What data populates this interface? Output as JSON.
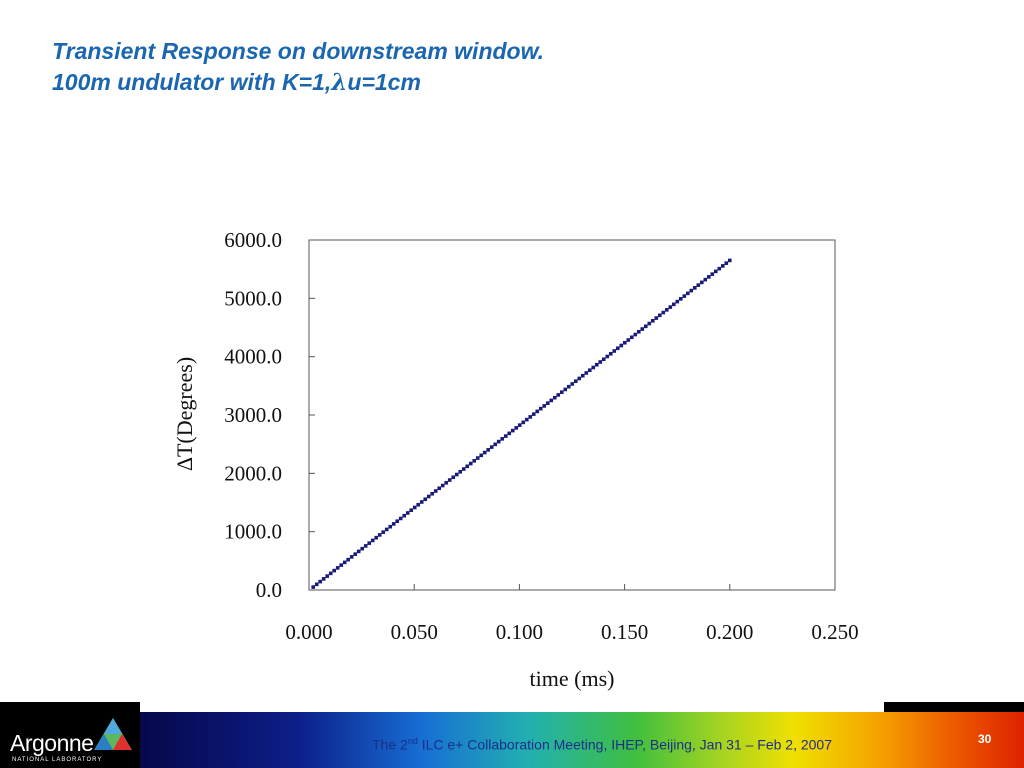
{
  "slide": {
    "title_line1": "Transient Response on downstream window.",
    "title_line2_prefix": "100m undulator with K=1,",
    "title_lambda": "λ",
    "title_line2_suffix": "u=1cm"
  },
  "chart_data": {
    "type": "scatter",
    "xlabel": "time (ms)",
    "ylabel": "ΔT(Degrees)",
    "xlim": [
      0.0,
      0.25
    ],
    "ylim": [
      0.0,
      6000.0
    ],
    "xticks": [
      "0.000",
      "0.050",
      "0.100",
      "0.150",
      "0.200",
      "0.250"
    ],
    "yticks": [
      "0.0",
      "1000.0",
      "2000.0",
      "3000.0",
      "4000.0",
      "5000.0",
      "6000.0"
    ],
    "grid": false,
    "legend": "none",
    "marker_color": "#1a1a7a",
    "x_start": 0.002,
    "x_end": 0.2,
    "y_start": 50,
    "y_end": 5650,
    "point_count": 120
  },
  "footer": {
    "logo_text": "Argonne",
    "logo_sub": "NATIONAL LABORATORY",
    "note_prefix": "The 2",
    "note_sup": "nd",
    "note_suffix": " ILC e+ Collaboration Meeting, IHEP, Beijing, Jan 31 – Feb 2, 2007",
    "page_number": "30"
  }
}
